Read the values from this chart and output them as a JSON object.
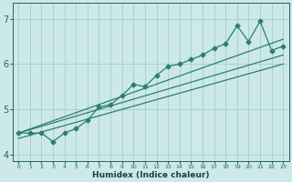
{
  "xlabel": "Humidex (Indice chaleur)",
  "x_data": [
    0,
    1,
    2,
    3,
    4,
    5,
    6,
    7,
    8,
    9,
    10,
    11,
    12,
    13,
    14,
    15,
    16,
    17,
    18,
    19,
    20,
    21,
    22,
    23
  ],
  "y_data": [
    4.47,
    4.47,
    4.47,
    4.28,
    4.47,
    4.57,
    4.75,
    5.05,
    5.1,
    5.3,
    5.55,
    5.5,
    5.75,
    5.95,
    6.0,
    6.1,
    6.2,
    6.35,
    6.45,
    6.85,
    6.5,
    6.95,
    6.3,
    6.4
  ],
  "line_color": "#2a7f72",
  "marker": "D",
  "marker_size": 2.5,
  "line_width": 0.9,
  "reg_line1_y": [
    4.47,
    6.55
  ],
  "reg_line2_y": [
    4.47,
    6.2
  ],
  "reg_line3_y": [
    4.35,
    6.0
  ],
  "xlim": [
    -0.5,
    23.5
  ],
  "ylim": [
    3.85,
    7.35
  ],
  "yticks": [
    4,
    5,
    6,
    7
  ],
  "xticks": [
    0,
    1,
    2,
    3,
    4,
    5,
    6,
    7,
    8,
    9,
    10,
    11,
    12,
    13,
    14,
    15,
    16,
    17,
    18,
    19,
    20,
    21,
    22,
    23
  ],
  "bg_color": "#cce8e8",
  "grid_color": "#9dc8c8",
  "tick_color": "#2a6060",
  "label_color": "#1a4040"
}
